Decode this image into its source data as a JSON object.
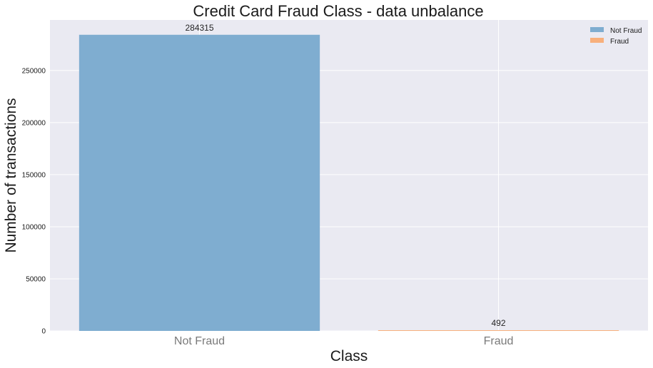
{
  "chart_data": {
    "type": "bar",
    "title": "Credit Card Fraud Class - data unbalance",
    "xlabel": "Class",
    "ylabel": "Number of transactions",
    "categories": [
      "Not Fraud",
      "Fraud"
    ],
    "values": [
      284315,
      492
    ],
    "data_labels": [
      "284315",
      "492"
    ],
    "series_colors": [
      "#7fadd0",
      "#f8b07c"
    ],
    "legend": {
      "placement": "top-right",
      "entries": [
        {
          "label": "Not Fraud",
          "color": "#7fadd0"
        },
        {
          "label": "Fraud",
          "color": "#f8b07c"
        }
      ]
    },
    "yticks": [
      0,
      50000,
      100000,
      150000,
      200000,
      250000
    ],
    "ytick_labels": [
      "0",
      "50000",
      "100000",
      "150000",
      "200000",
      "250000"
    ],
    "ylim": [
      0,
      298531
    ],
    "grid": true,
    "background": "#eaeaf2"
  }
}
